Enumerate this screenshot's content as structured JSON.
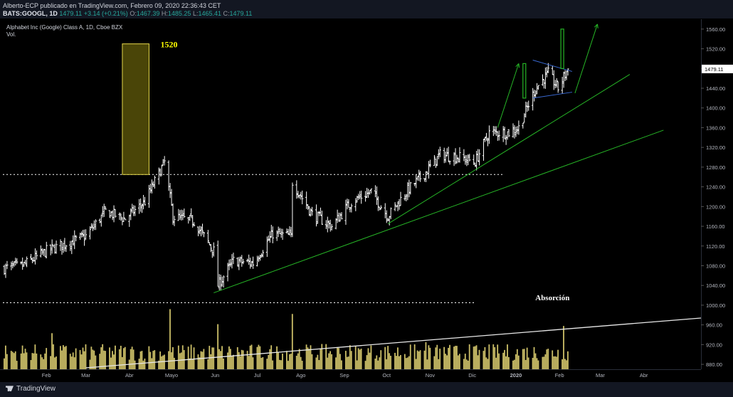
{
  "header": {
    "publisher_line": "Alberto-ECP publicado en TradingView.com, Febrero 09, 2020 22:36:43 CET",
    "symbol": "BATS:GOOGL, 1D",
    "close_value": "1479.11",
    "change": "+3.14 (+0.21%)",
    "o_label": "O:",
    "o_value": "1467.39",
    "h_label": "H:",
    "h_value": "1485.25",
    "l_label": "L:",
    "l_value": "1465.41",
    "c_label": "C:",
    "c_value": "1479.11"
  },
  "legend": {
    "instrument": "Alphabet Inc (Google) Class A, 1D, Cboe BZX",
    "volume": "Vol."
  },
  "footer": {
    "brand": "TradingView"
  },
  "chart_data": {
    "type": "bar",
    "ohlc_anchors": [
      {
        "date": "2019-01-02",
        "close": 1075
      },
      {
        "date": "2019-01-15",
        "close": 1080
      },
      {
        "date": "2019-02-01",
        "close": 1110
      },
      {
        "date": "2019-02-15",
        "close": 1125
      },
      {
        "date": "2019-03-01",
        "close": 1140
      },
      {
        "date": "2019-03-15",
        "close": 1190
      },
      {
        "date": "2019-03-29",
        "close": 1175
      },
      {
        "date": "2019-04-12",
        "close": 1210
      },
      {
        "date": "2019-04-26",
        "close": 1290
      },
      {
        "date": "2019-05-02",
        "close": 1180
      },
      {
        "date": "2019-05-17",
        "close": 1170
      },
      {
        "date": "2019-05-31",
        "close": 1110
      },
      {
        "date": "2019-06-03",
        "close": 1040
      },
      {
        "date": "2019-06-14",
        "close": 1090
      },
      {
        "date": "2019-06-28",
        "close": 1085
      },
      {
        "date": "2019-07-12",
        "close": 1145
      },
      {
        "date": "2019-07-25",
        "close": 1140
      },
      {
        "date": "2019-07-26",
        "close": 1250
      },
      {
        "date": "2019-08-09",
        "close": 1185
      },
      {
        "date": "2019-08-23",
        "close": 1160
      },
      {
        "date": "2019-09-06",
        "close": 1210
      },
      {
        "date": "2019-09-20",
        "close": 1230
      },
      {
        "date": "2019-10-02",
        "close": 1180
      },
      {
        "date": "2019-10-15",
        "close": 1230
      },
      {
        "date": "2019-10-29",
        "close": 1270
      },
      {
        "date": "2019-11-08",
        "close": 1305
      },
      {
        "date": "2019-11-22",
        "close": 1300
      },
      {
        "date": "2019-12-03",
        "close": 1290
      },
      {
        "date": "2019-12-13",
        "close": 1350
      },
      {
        "date": "2019-12-27",
        "close": 1350
      },
      {
        "date": "2020-01-03",
        "close": 1360
      },
      {
        "date": "2020-01-15",
        "close": 1440
      },
      {
        "date": "2020-01-24",
        "close": 1470
      },
      {
        "date": "2020-01-31",
        "close": 1440
      },
      {
        "date": "2020-02-07",
        "close": 1479
      }
    ],
    "volume_spikes": [
      {
        "date": "2019-02-05",
        "level": 0.6
      },
      {
        "date": "2019-04-30",
        "level": 1.0
      },
      {
        "date": "2019-06-03",
        "level": 0.75
      },
      {
        "date": "2019-07-26",
        "level": 0.92
      },
      {
        "date": "2019-10-29",
        "level": 0.45
      },
      {
        "date": "2020-02-04",
        "level": 0.72
      }
    ],
    "y_axis": {
      "ticks": [
        "880.00",
        "920.00",
        "960.00",
        "1000.00",
        "1040.00",
        "1080.00",
        "1120.00",
        "1160.00",
        "1200.00",
        "1240.00",
        "1280.00",
        "1320.00",
        "1360.00",
        "1400.00",
        "1440.00",
        "1480.00",
        "1520.00",
        "1560.00"
      ],
      "range": [
        870,
        1580
      ],
      "current_price_label": "1479.11"
    },
    "x_axis": {
      "ticks": [
        "Feb",
        "Mar",
        "Abr",
        "Mayo",
        "Jun",
        "Jul",
        "Ago",
        "Sep",
        "Oct",
        "Nov",
        "Dic",
        "2020",
        "Feb",
        "Mar",
        "Abr"
      ]
    },
    "annotations": {
      "target_label": "1520",
      "volume_label": "Absorción",
      "horizontal_levels": [
        1265,
        1005
      ]
    },
    "colors": {
      "bars": "#ffffff",
      "volume": "#f0e07a",
      "trendlines": "#26b526",
      "projection_box_fill": "#4a4508",
      "projection_box_stroke": "#e6d84a",
      "label_yellow": "#ffff00",
      "level_lines": "#ffffff",
      "triangle": "#3a6ad4"
    }
  }
}
